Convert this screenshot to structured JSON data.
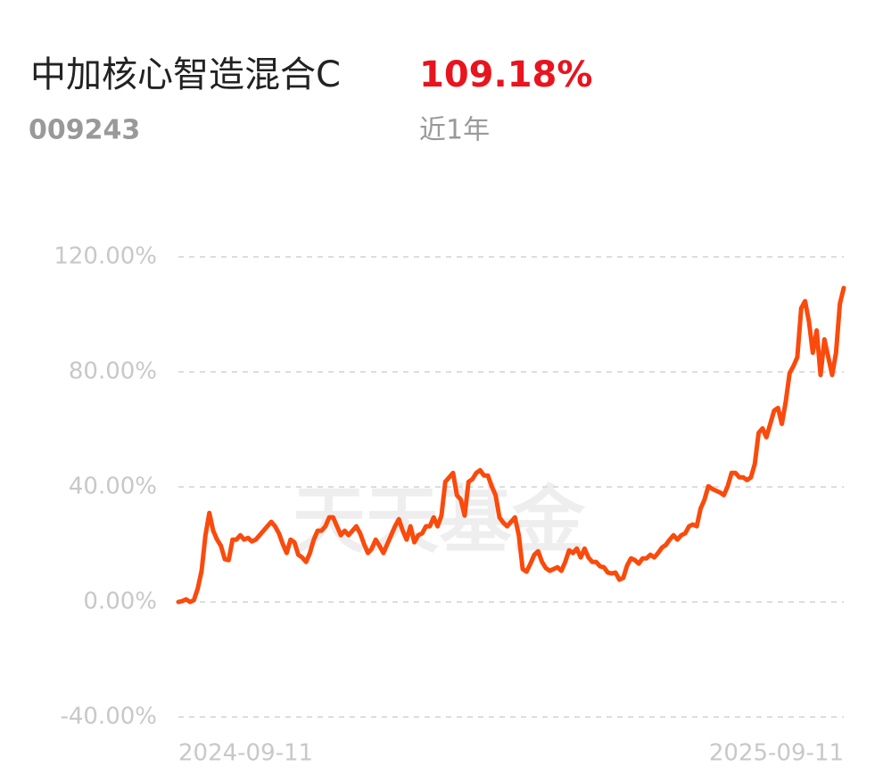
{
  "chart_data": {
    "type": "line",
    "title": "中加核心智造混合C",
    "change": "109.18%",
    "code": "009243",
    "period": "近1年",
    "watermark": "天天基金",
    "color": "#fa4a0c",
    "grid": true,
    "ylim": [
      -40,
      120
    ],
    "yticks": [
      {
        "value": 120,
        "label": "120.00%"
      },
      {
        "value": 80,
        "label": "80.00%"
      },
      {
        "value": 40,
        "label": "40.00%"
      },
      {
        "value": 0,
        "label": "0.00%"
      },
      {
        "value": -40,
        "label": "-40.00%"
      }
    ],
    "categories": [
      "2024-09-11",
      null,
      null,
      null,
      null,
      null,
      null,
      null,
      null,
      null,
      null,
      null,
      null,
      null,
      null,
      null,
      null,
      null,
      null,
      null,
      null,
      null,
      null,
      null,
      null,
      null,
      null,
      null,
      null,
      null,
      null,
      null,
      null,
      null,
      null,
      null,
      null,
      null,
      null,
      null,
      null,
      null,
      null,
      null,
      null,
      null,
      null,
      null,
      null,
      null,
      null,
      null,
      null,
      null,
      null,
      null,
      null,
      null,
      null,
      null,
      null,
      null,
      null,
      null,
      null,
      null,
      null,
      null,
      null,
      null,
      null,
      null,
      null,
      null,
      null,
      null,
      null,
      null,
      null,
      null,
      null,
      null,
      null,
      null,
      null,
      null,
      null,
      null,
      null,
      null,
      null,
      null,
      null,
      null,
      null,
      null,
      null,
      null,
      null,
      null,
      null,
      null,
      null,
      null,
      null,
      null,
      null,
      null,
      null,
      null,
      null,
      null,
      null,
      null,
      null,
      null,
      null,
      null,
      null,
      null,
      null,
      null,
      null,
      null,
      null,
      null,
      null,
      null,
      null,
      null,
      null,
      null,
      null,
      null,
      null,
      null,
      null,
      null,
      null,
      null,
      null,
      null,
      null,
      null,
      null,
      null,
      null,
      null,
      null,
      null,
      null,
      null,
      null,
      null,
      null,
      null,
      null,
      null,
      null,
      null,
      null,
      null,
      null,
      null,
      null,
      null,
      null,
      null,
      null,
      null,
      null,
      null,
      "2025-09-11"
    ],
    "values": [
      0,
      0.31,
      0.93,
      0,
      0.62,
      4.64,
      10.83,
      23.21,
      30.95,
      24.76,
      21.67,
      19.5,
      14.86,
      14.55,
      21.67,
      21.67,
      23.21,
      21.67,
      22.28,
      21.05,
      21.67,
      23.21,
      24.76,
      26.31,
      27.85,
      26.31,
      23.83,
      20.12,
      17.02,
      21.67,
      20.74,
      16.4,
      15.48,
      13.93,
      17.02,
      21.67,
      24.76,
      24.76,
      26.31,
      29.4,
      29.4,
      26.31,
      23.21,
      24.76,
      23.21,
      24.76,
      26.31,
      23.83,
      20.12,
      17.02,
      18.57,
      21.67,
      19.5,
      17.02,
      20.12,
      23.21,
      26.31,
      28.78,
      24.76,
      21.67,
      26.31,
      20.74,
      23.21,
      23.83,
      26.31,
      26.31,
      29.4,
      26.31,
      30.02,
      41.78,
      43.33,
      44.88,
      37.14,
      35.59,
      30.02,
      41.78,
      42.71,
      44.88,
      45.81,
      43.95,
      43.95,
      40.24,
      37.14,
      29.4,
      27.55,
      26.31,
      27.85,
      29.4,
      23.21,
      11.45,
      10.52,
      13.31,
      16.4,
      17.64,
      13.93,
      11.76,
      10.83,
      11.45,
      12.07,
      10.83,
      13.93,
      17.95,
      17.02,
      18.57,
      15.48,
      18.57,
      15.48,
      13.93,
      13.93,
      12.38,
      12.07,
      10.21,
      9.9,
      10.21,
      7.74,
      8.36,
      12.69,
      15.17,
      14.55,
      13.31,
      15.17,
      15.17,
      16.4,
      15.48,
      17.02,
      18.88,
      19.81,
      21.67,
      23.21,
      21.67,
      23.21,
      23.83,
      26.31,
      26.93,
      26.31,
      32.5,
      35.59,
      40.24,
      39.31,
      38.69,
      38.07,
      37.14,
      40.24,
      44.88,
      44.88,
      43.33,
      43.33,
      42.4,
      43.33,
      47.97,
      58.81,
      60.35,
      57.26,
      61.9,
      66.54,
      67.47,
      61.9,
      69.64,
      79.54,
      82.02,
      85.11,
      102.14,
      104.61,
      97.49,
      86.66,
      94.4,
      78.92,
      91.3,
      85.11,
      78.92,
      86.66,
      103.68,
      109.18
    ]
  }
}
